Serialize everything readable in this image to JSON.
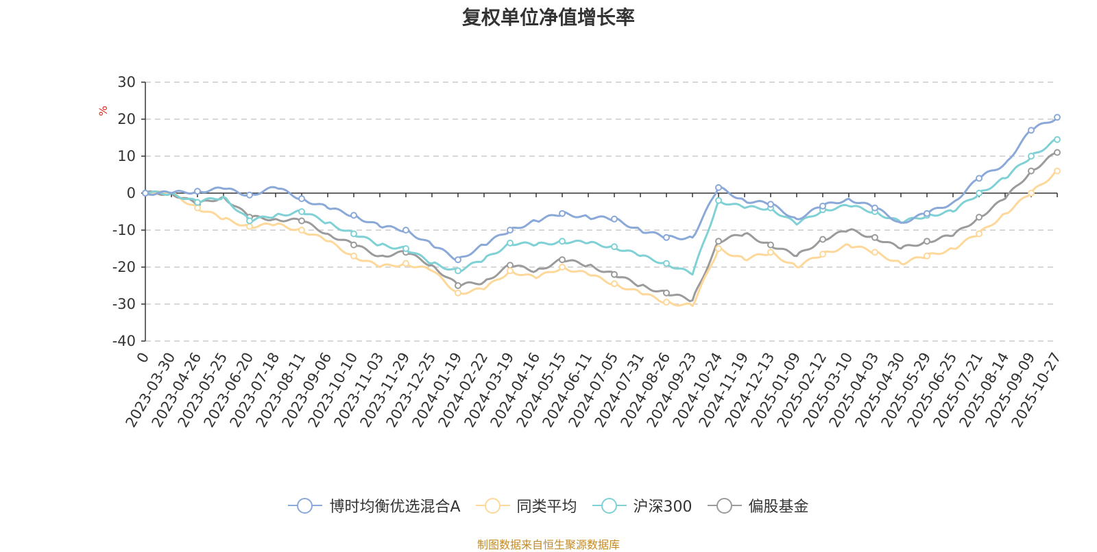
{
  "chart_data": {
    "type": "line",
    "title": "复权单位净值增长率",
    "ylabel": "%",
    "ylim": [
      -40,
      30
    ],
    "yticks": [
      -40,
      -30,
      -20,
      -10,
      0,
      10,
      20,
      30
    ],
    "x_origin_label": "0",
    "categories": [
      "2023-03-30",
      "2023-04-26",
      "2023-05-25",
      "2023-06-20",
      "2023-07-18",
      "2023-08-11",
      "2023-09-06",
      "2023-10-10",
      "2023-11-03",
      "2023-11-29",
      "2023-12-25",
      "2024-01-19",
      "2024-02-22",
      "2024-03-19",
      "2024-04-16",
      "2024-05-15",
      "2024-06-11",
      "2024-07-05",
      "2024-07-31",
      "2024-08-26",
      "2024-09-23",
      "2024-10-24",
      "2024-11-19",
      "2024-12-13",
      "2025-01-09",
      "2025-02-12",
      "2025-03-10",
      "2025-04-03",
      "2025-04-30",
      "2025-05-29",
      "2025-06-25",
      "2025-07-21",
      "2025-08-14",
      "2025-09-09",
      "2025-10-27"
    ],
    "series": [
      {
        "name": "博时均衡优选混合A",
        "color": "#8aa9d8",
        "values": [
          0,
          0.5,
          1.2,
          -0.5,
          1.5,
          -1.5,
          -4,
          -6,
          -9,
          -10,
          -14,
          -18,
          -14,
          -10,
          -7.5,
          -5.5,
          -6.5,
          -7,
          -10,
          -12,
          -12,
          1.5,
          -2,
          -3,
          -7,
          -3.5,
          -1.5,
          -4,
          -8,
          -5.5,
          -2.5,
          4,
          8,
          17,
          20.5
        ]
      },
      {
        "name": "同类平均",
        "color": "#fdd89a",
        "values": [
          0,
          -4,
          -7,
          -9,
          -8.5,
          -10,
          -13,
          -17,
          -20,
          -19,
          -21,
          -27,
          -26,
          -21,
          -23,
          -20,
          -22,
          -24.5,
          -27,
          -29.5,
          -30.5,
          -15,
          -18,
          -16,
          -20,
          -16.5,
          -14,
          -16,
          -19,
          -17,
          -15,
          -11,
          -5.5,
          0,
          6
        ]
      },
      {
        "name": "沪深300",
        "color": "#7fd1d6",
        "values": [
          0,
          -2.5,
          -1,
          -7.5,
          -6,
          -5,
          -8,
          -11,
          -14,
          -15,
          -19,
          -21,
          -18,
          -13.5,
          -14,
          -13,
          -13.5,
          -14.5,
          -17,
          -19,
          -22,
          -2,
          -4,
          -4,
          -8.5,
          -4.5,
          -3.5,
          -5,
          -8,
          -6,
          -5,
          0,
          4,
          10,
          14.5
        ]
      },
      {
        "name": "偏股基金",
        "color": "#9b9b9b",
        "values": [
          0,
          -3,
          -1,
          -6.5,
          -7,
          -7.5,
          -11,
          -14,
          -17,
          -16,
          -19.5,
          -25,
          -24,
          -19.5,
          -21,
          -18,
          -19.5,
          -22,
          -25,
          -27,
          -29,
          -13,
          -11,
          -14,
          -17,
          -12.5,
          -10,
          -12,
          -15,
          -13,
          -11.5,
          -6.5,
          -1.5,
          6,
          11
        ]
      }
    ]
  },
  "source_text": "制图数据来自恒生聚源数据库",
  "colors": {
    "source": "#c38a23",
    "ylabel": "#e0271f",
    "axis": "#333333",
    "grid": "#cccccc"
  }
}
